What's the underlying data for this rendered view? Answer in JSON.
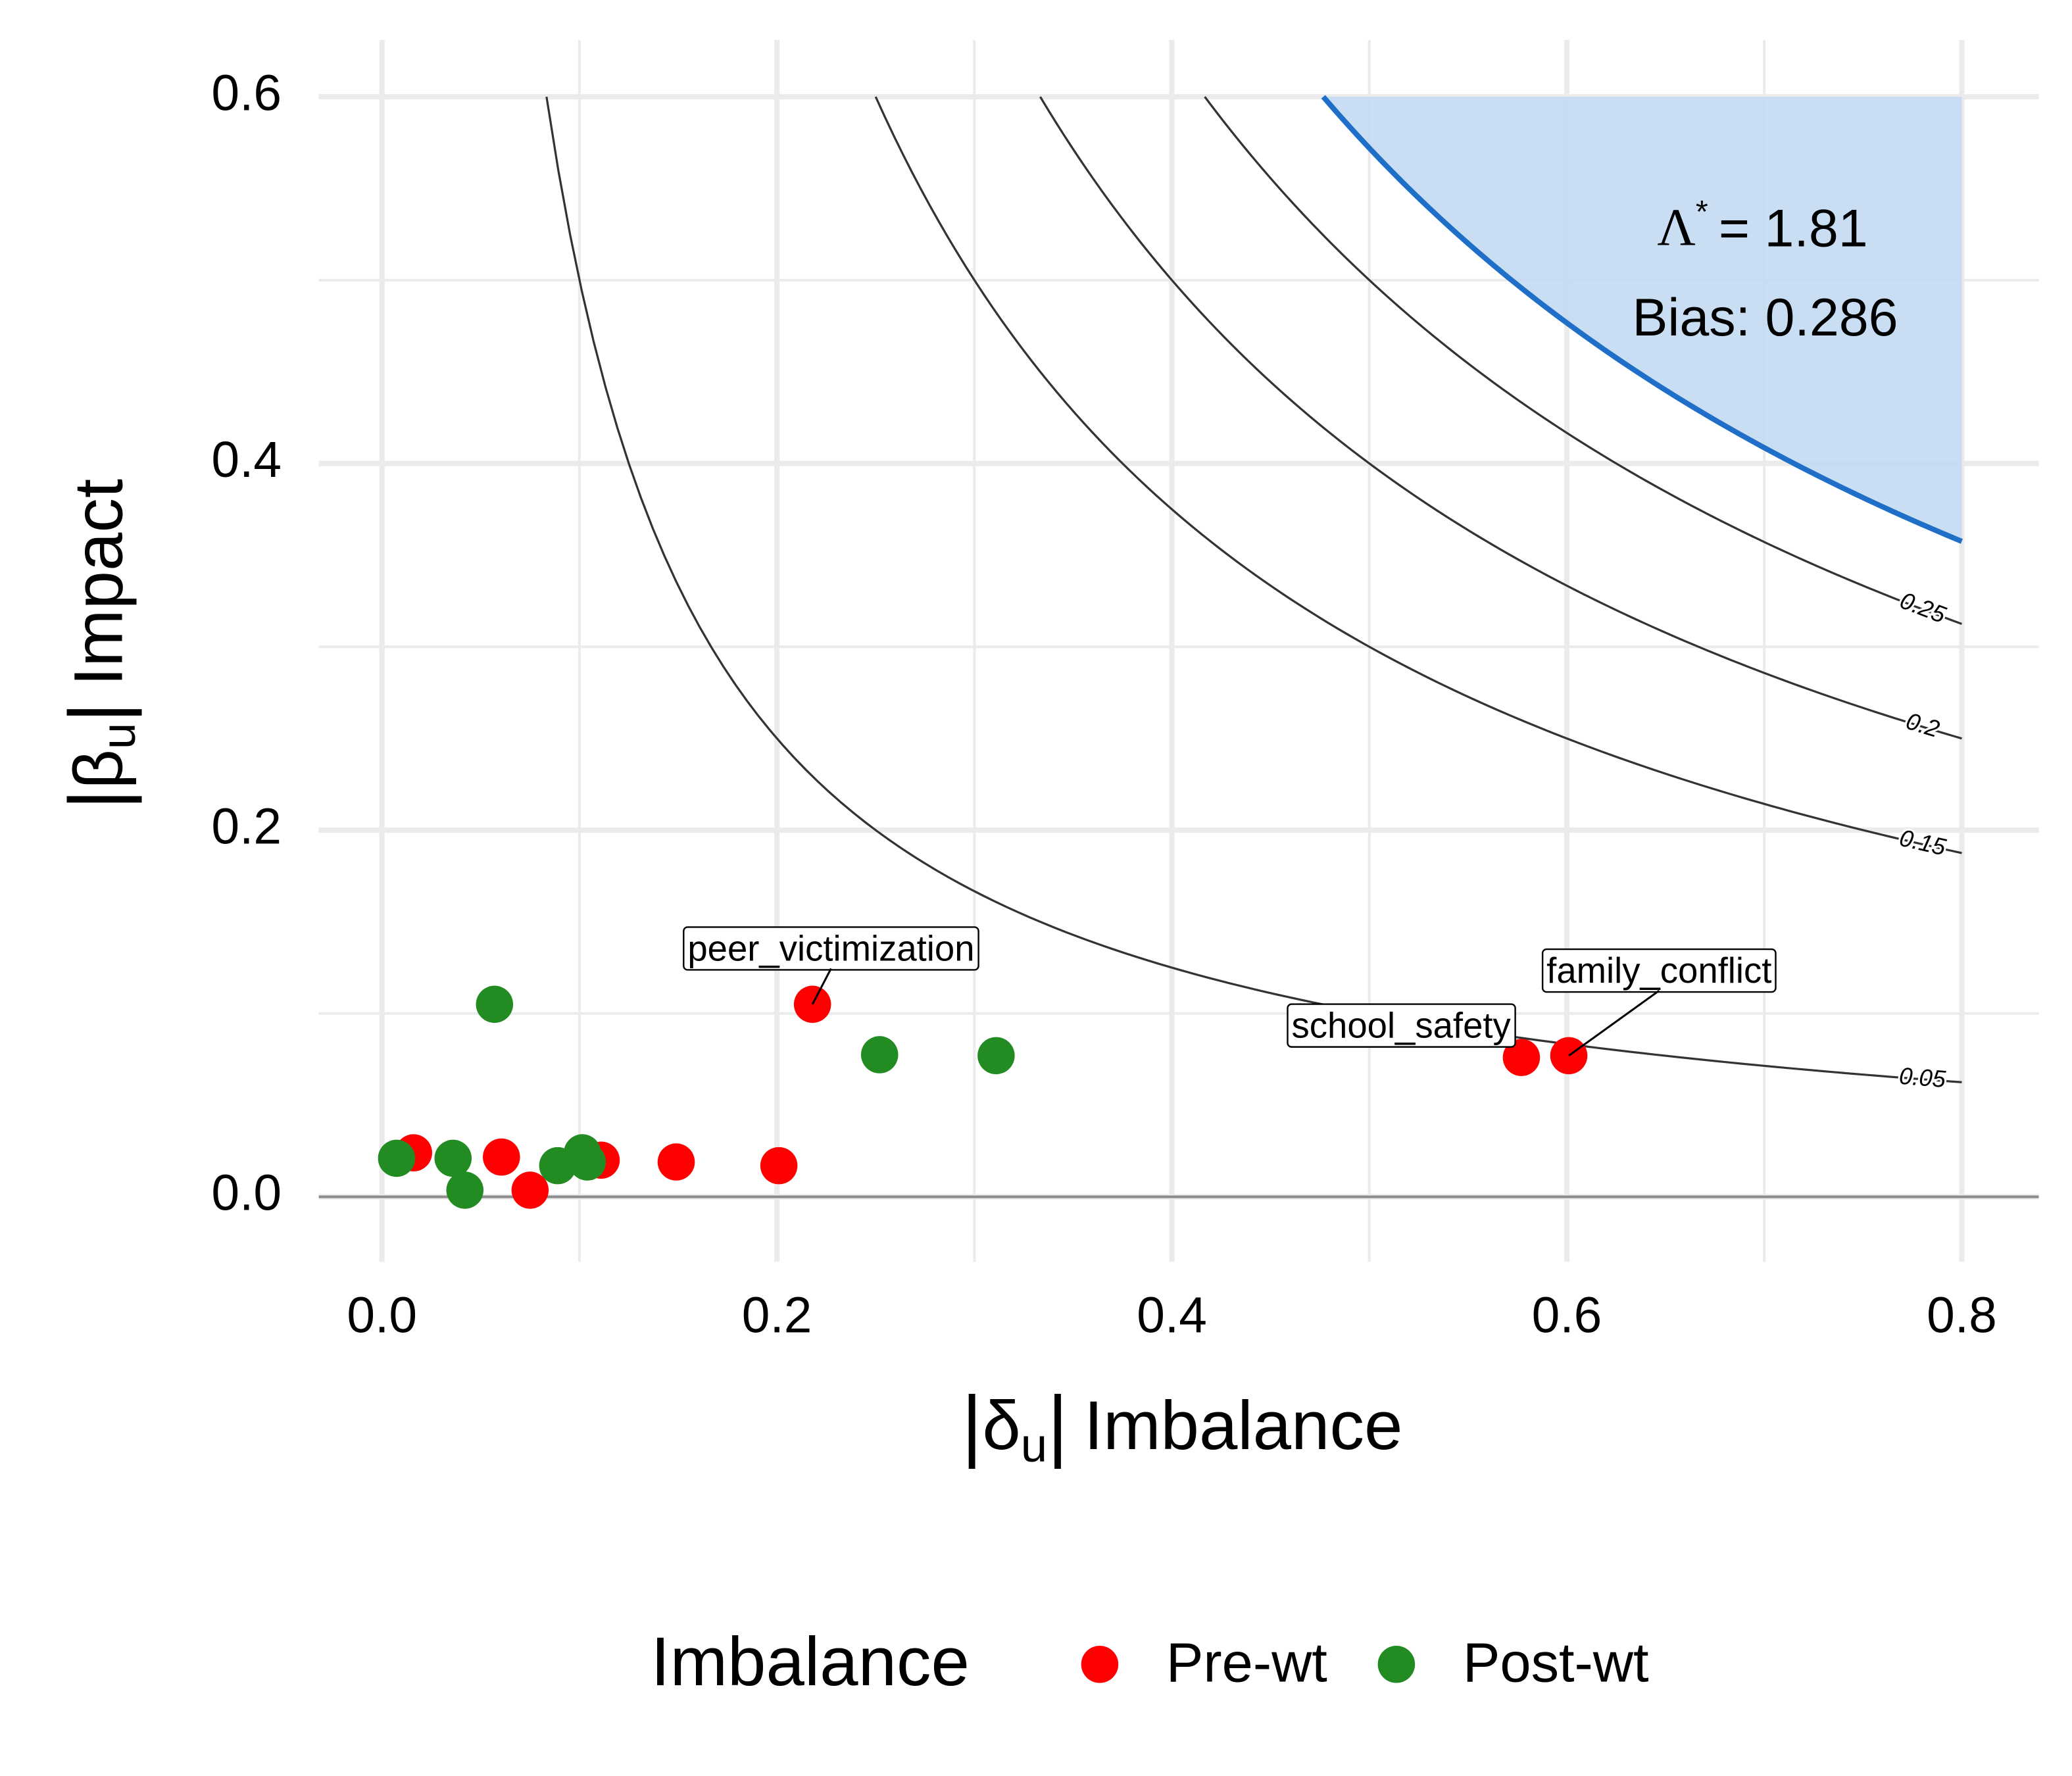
{
  "chart_data": {
    "type": "scatter",
    "xlabel_symbol": "δ",
    "xlabel_subscript": "u",
    "xlabel": "Imbalance",
    "ylabel_symbol": "β",
    "ylabel_subscript": "u",
    "ylabel": "Impact",
    "xlim": [
      -0.032,
      0.839
    ],
    "ylim": [
      -0.0355,
      0.631
    ],
    "xticks": [
      {
        "value": 0,
        "label": "0.0"
      },
      0.2,
      0.4,
      0.6,
      0.8
    ],
    "yticks": [
      {
        "value": 0,
        "label": "0.0"
      },
      0.2,
      0.4,
      0.6
    ],
    "xminor": [
      0.1,
      0.3,
      0.5,
      0.7
    ],
    "yminor": [
      0.1,
      0.3,
      0.5
    ],
    "grid": true,
    "hline": 0,
    "contours": [
      0.05,
      0.15,
      0.2,
      0.25
    ],
    "contour_xmax": 0.8,
    "contour_ymax": 0.6,
    "threshold": 0.286,
    "threshold_color": "#1f6fc8",
    "region_color": "#c3daf1",
    "lambda_symbol": "Λ",
    "lambda_sup": "*",
    "lambda_value": "= 1.81",
    "bias_label": "Bias: 0.286",
    "legend_title": "Imbalance",
    "legend_position": "bottom",
    "series": [
      {
        "name": "Pre-wt",
        "color": "#ff0000",
        "x": [
          0.016,
          0.0605,
          0.075,
          0.111,
          0.149,
          0.201,
          0.218,
          0.577,
          0.601
        ],
        "values": [
          0.024,
          0.0217,
          0.0036,
          0.02,
          0.019,
          0.017,
          0.105,
          0.076,
          0.077
        ],
        "labels": [
          null,
          null,
          null,
          null,
          null,
          null,
          "peer_victimization",
          "school_safety",
          "family_conflict"
        ]
      },
      {
        "name": "Post-wt",
        "color": "#228b22",
        "x": [
          0.0074,
          0.036,
          0.042,
          0.057,
          0.089,
          0.1015,
          0.104,
          0.252,
          0.311
        ],
        "values": [
          0.021,
          0.021,
          0.0036,
          0.105,
          0.017,
          0.024,
          0.019,
          0.0775,
          0.077
        ]
      }
    ]
  }
}
